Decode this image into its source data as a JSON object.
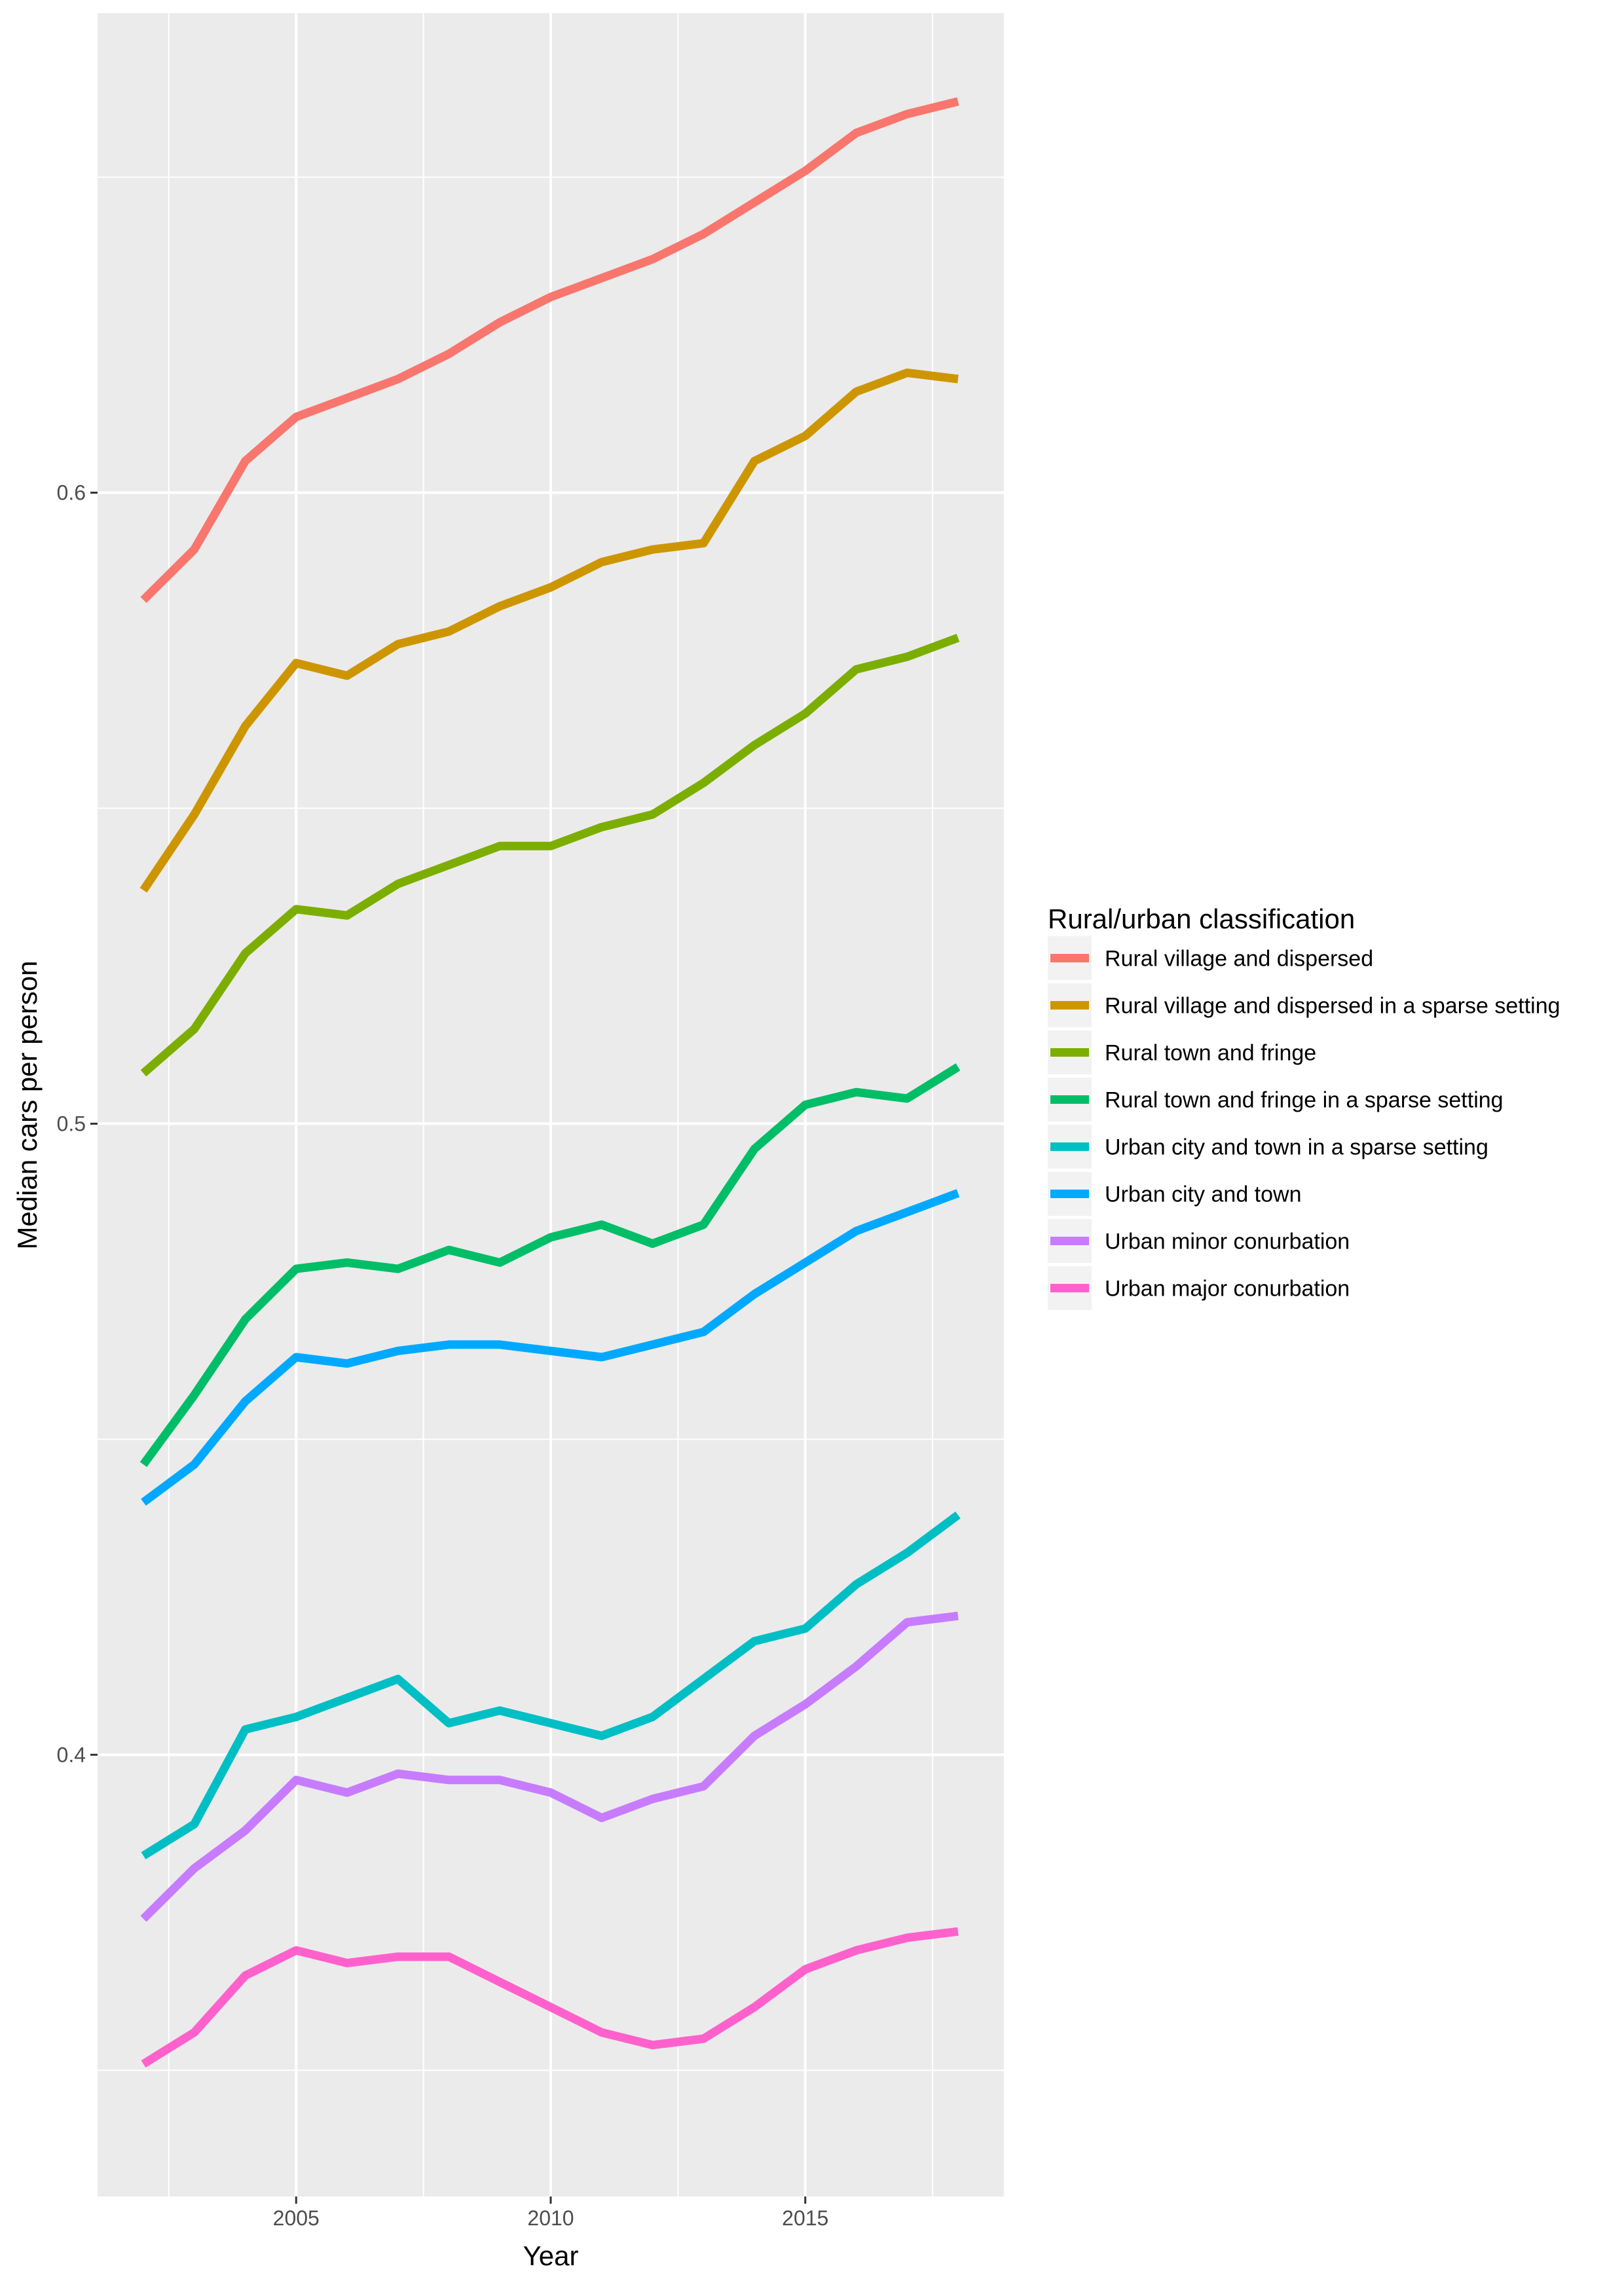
{
  "chart_data": {
    "type": "line",
    "xlabel": "Year",
    "ylabel": "Median cars per person",
    "x": [
      2002,
      2003,
      2004,
      2005,
      2006,
      2007,
      2008,
      2009,
      2010,
      2011,
      2012,
      2013,
      2014,
      2015,
      2016,
      2017,
      2018
    ],
    "xlim": [
      2001.1,
      2018.9
    ],
    "ylim": [
      0.33,
      0.676
    ],
    "x_ticks": [
      2005,
      2010,
      2015
    ],
    "x_tick_labels": [
      "2005",
      "2010",
      "2015"
    ],
    "y_ticks": [
      0.4,
      0.5,
      0.6
    ],
    "y_tick_labels": [
      "0.4",
      "0.5",
      "0.6"
    ],
    "grid": true,
    "panel_background": "#EBEBEB",
    "legend": {
      "title": "Rural/urban classification",
      "placement": "right"
    },
    "series": [
      {
        "name": "Rural village and dispersed",
        "color": "#F8766D",
        "values": [
          0.583,
          0.591,
          0.605,
          0.612,
          0.615,
          0.618,
          0.622,
          0.627,
          0.631,
          0.634,
          0.637,
          0.641,
          0.646,
          0.651,
          0.657,
          0.66,
          0.662
        ]
      },
      {
        "name": "Rural village and dispersed in a sparse setting",
        "color": "#CD9600",
        "values": [
          0.537,
          0.549,
          0.563,
          0.573,
          0.571,
          0.576,
          0.578,
          0.582,
          0.585,
          0.589,
          0.591,
          0.592,
          0.605,
          0.609,
          0.616,
          0.619,
          0.618
        ]
      },
      {
        "name": "Rural town and fringe",
        "color": "#7CAE00",
        "values": [
          0.508,
          0.515,
          0.527,
          0.534,
          0.533,
          0.538,
          0.541,
          0.544,
          0.544,
          0.547,
          0.549,
          0.554,
          0.56,
          0.565,
          0.572,
          0.574,
          0.577
        ]
      },
      {
        "name": "Rural town and fringe in a sparse setting",
        "color": "#00BE67",
        "values": [
          0.446,
          0.457,
          0.469,
          0.477,
          0.478,
          0.477,
          0.48,
          0.478,
          0.482,
          0.484,
          0.481,
          0.484,
          0.496,
          0.503,
          0.505,
          0.504,
          0.509
        ]
      },
      {
        "name": "Urban city and town in a sparse setting",
        "color": "#00BFC4",
        "values": [
          0.384,
          0.389,
          0.404,
          0.406,
          0.409,
          0.412,
          0.405,
          0.407,
          0.405,
          0.403,
          0.406,
          0.412,
          0.418,
          0.42,
          0.427,
          0.432,
          0.438
        ]
      },
      {
        "name": "Urban city and town",
        "color": "#00A9FF",
        "values": [
          0.44,
          0.446,
          0.456,
          0.463,
          0.462,
          0.464,
          0.465,
          0.465,
          0.464,
          0.463,
          0.465,
          0.467,
          0.473,
          0.478,
          0.483,
          0.486,
          0.489
        ]
      },
      {
        "name": "Urban minor conurbation",
        "color": "#C77CFF",
        "values": [
          0.374,
          0.382,
          0.388,
          0.396,
          0.394,
          0.397,
          0.396,
          0.396,
          0.394,
          0.39,
          0.393,
          0.395,
          0.403,
          0.408,
          0.414,
          0.421,
          0.422
        ]
      },
      {
        "name": "Urban major conurbation",
        "color": "#FF61CC",
        "values": [
          0.351,
          0.356,
          0.365,
          0.369,
          0.367,
          0.368,
          0.368,
          0.364,
          0.36,
          0.356,
          0.354,
          0.355,
          0.36,
          0.366,
          0.369,
          0.371,
          0.372
        ]
      }
    ]
  }
}
